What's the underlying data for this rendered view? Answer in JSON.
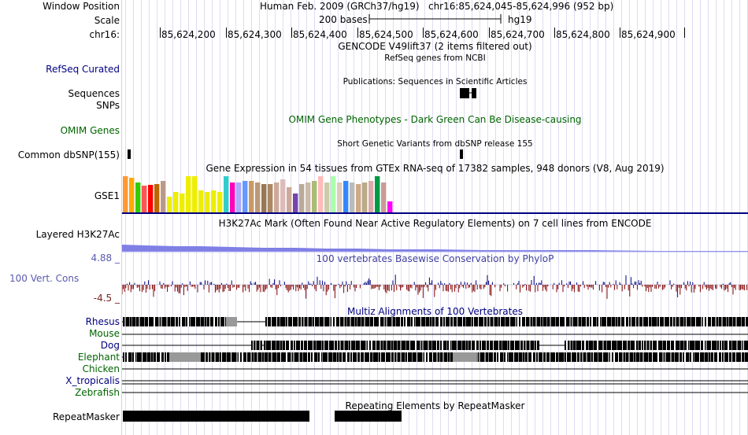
{
  "header": {
    "window_position_label": "Window Position",
    "assembly": "Human Feb. 2009 (GRCh37/hg19)",
    "position": "chr16:85,624,045-85,624,996 (952 bp)",
    "scale_label": "Scale",
    "scale_bar_label": "200 bases",
    "scale_db": "hg19",
    "chrom_label": "chr16:",
    "ticks": [
      "85,624,200",
      "85,624,300",
      "85,624,400",
      "85,624,500",
      "85,624,600",
      "85,624,700",
      "85,624,800",
      "85,624,900"
    ]
  },
  "tracks": {
    "gencode_title": "GENCODE V49lift37 (2 items filtered out)",
    "refseq_label": "RefSeq Curated",
    "refseq_title": "RefSeq genes from NCBI",
    "pubs_title": "Publications: Sequences in Scientific Articles",
    "sequences_label": "Sequences",
    "snps_label": "SNPs",
    "omim_label": "OMIM Genes",
    "omim_title": "OMIM Gene Phenotypes - Dark Green Can Be Disease-causing",
    "dbsnp_title": "Short Genetic Variants from dbSNP release 155",
    "dbsnp_label": "Common dbSNP(155)",
    "gtex_title": "Gene Expression in 54 tissues from GTEx RNA-seq of 17382 samples, 948 donors (V8, Aug 2019)",
    "gtex_label": "GSE1",
    "h3k27ac_label": "Layered H3K27Ac",
    "h3k27ac_title": "H3K27Ac Mark (Often Found Near Active Regulatory Elements) on 7 cell lines from ENCODE",
    "cons_max": "4.88 _",
    "cons_label": "100 Vert. Cons",
    "cons_min": "-4.5 _",
    "cons_title": "100 vertebrates Basewise Conservation by PhyloP",
    "multiz_title": "Multiz Alignments of 100 Vertebrates",
    "species": [
      "Rhesus",
      "Mouse",
      "Dog",
      "Elephant",
      "Chicken",
      "X_tropicalis",
      "Zebrafish"
    ],
    "repeat_title": "Repeating Elements by RepeatMasker",
    "repeat_label": "RepeatMasker"
  },
  "gtex_bars": [
    {
      "value": 46,
      "color": "#ff9933"
    },
    {
      "value": 44,
      "color": "#ffaa00"
    },
    {
      "value": 38,
      "color": "#33cc00"
    },
    {
      "value": 34,
      "color": "#ff5555"
    },
    {
      "value": 35,
      "color": "#ff0000"
    },
    {
      "value": 36,
      "color": "#bb6600"
    },
    {
      "value": 40,
      "color": "#bb9988"
    },
    {
      "value": 20,
      "color": "#eeee00"
    },
    {
      "value": 26,
      "color": "#eeee00"
    },
    {
      "value": 24,
      "color": "#eeee00"
    },
    {
      "value": 46,
      "color": "#eeee00"
    },
    {
      "value": 46,
      "color": "#eeee00"
    },
    {
      "value": 28,
      "color": "#eeee00"
    },
    {
      "value": 26,
      "color": "#eeee00"
    },
    {
      "value": 28,
      "color": "#eeee00"
    },
    {
      "value": 26,
      "color": "#eeee00"
    },
    {
      "value": 46,
      "color": "#33cccc"
    },
    {
      "value": 38,
      "color": "#ff00bb"
    },
    {
      "value": 38,
      "color": "#aaaaff"
    },
    {
      "value": 40,
      "color": "#6699ff"
    },
    {
      "value": 40,
      "color": "#cc9966"
    },
    {
      "value": 38,
      "color": "#bb9977"
    },
    {
      "value": 36,
      "color": "#997755"
    },
    {
      "value": 36,
      "color": "#aa8866"
    },
    {
      "value": 38,
      "color": "#ccaa99"
    },
    {
      "value": 42,
      "color": "#ddbbbb"
    },
    {
      "value": 32,
      "color": "#ccaa99"
    },
    {
      "value": 24,
      "color": "#7744aa"
    },
    {
      "value": 36,
      "color": "#bbaa99"
    },
    {
      "value": 38,
      "color": "#ccbbaa"
    },
    {
      "value": 40,
      "color": "#aabb77"
    },
    {
      "value": 46,
      "color": "#ffbbbb"
    },
    {
      "value": 38,
      "color": "#ccccaa"
    },
    {
      "value": 46,
      "color": "#aaffaa"
    },
    {
      "value": 38,
      "color": "#ddccbb"
    },
    {
      "value": 40,
      "color": "#3388ff"
    },
    {
      "value": 38,
      "color": "#bbbbbb"
    },
    {
      "value": 36,
      "color": "#ccaa88"
    },
    {
      "value": 38,
      "color": "#bbaa88"
    },
    {
      "value": 40,
      "color": "#ddaaaa"
    },
    {
      "value": 46,
      "color": "#009944"
    },
    {
      "value": 38,
      "color": "#cc9999"
    },
    {
      "value": 14,
      "color": "#ff00ff"
    }
  ],
  "colors": {
    "h3k27ac_fill": "#7f7fe6",
    "cons_pos": "#000080",
    "cons_neg": "#800000",
    "align_block": "#000000",
    "align_gap": "#888888",
    "grid": "#ddddf4"
  }
}
